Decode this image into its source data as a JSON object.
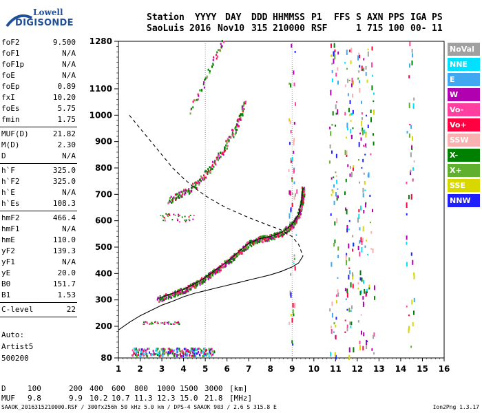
{
  "logo": {
    "top": "Lowell",
    "bottom": "DIGISONDE"
  },
  "header": {
    "line1": [
      "Station",
      "YYYY",
      "DAY",
      "DDD",
      "HHMMSS",
      "P1",
      "FFS",
      "S",
      "AXN",
      "PPS",
      "IGA",
      "PS"
    ],
    "line2": [
      "SaoLuis",
      "2016",
      "Nov10",
      "315",
      "210000",
      "RSF",
      "1",
      "715",
      "100",
      "00-",
      "11"
    ]
  },
  "params": [
    {
      "label": "foF2",
      "value": "9.500"
    },
    {
      "label": "foF1",
      "value": "N/A"
    },
    {
      "label": "foF1p",
      "value": "N/A"
    },
    {
      "label": "foE",
      "value": "N/A"
    },
    {
      "label": "foEp",
      "value": "0.89"
    },
    {
      "label": "fxI",
      "value": "10.20"
    },
    {
      "label": "foEs",
      "value": "5.75"
    },
    {
      "label": "fmin",
      "value": "1.75",
      "sep": true
    },
    {
      "label": "MUF(D)",
      "value": "21.82"
    },
    {
      "label": "M(D)",
      "value": "2.30"
    },
    {
      "label": "D",
      "value": "N/A",
      "sep": true
    },
    {
      "label": "h`F",
      "value": "325.0"
    },
    {
      "label": "h`F2",
      "value": "325.0"
    },
    {
      "label": "h`E",
      "value": "N/A"
    },
    {
      "label": "h`Es",
      "value": "108.3",
      "sep": true
    },
    {
      "label": "hmF2",
      "value": "466.4"
    },
    {
      "label": "hmF1",
      "value": "N/A"
    },
    {
      "label": "hmE",
      "value": "110.0"
    },
    {
      "label": "yF2",
      "value": "139.3"
    },
    {
      "label": "yF1",
      "value": "N/A"
    },
    {
      "label": "yE",
      "value": "20.0"
    },
    {
      "label": "B0",
      "value": "151.7"
    },
    {
      "label": "B1",
      "value": "1.53",
      "sep": true
    },
    {
      "label": "C-level",
      "value": "22",
      "sep": true
    }
  ],
  "auto": {
    "line1": "Auto:",
    "line2": "Artist5",
    "line3": "500200"
  },
  "legend": [
    {
      "label": "NoVal",
      "color": "#a0a0a0"
    },
    {
      "label": "NNE",
      "color": "#00e0ff"
    },
    {
      "label": "E",
      "color": "#3fa8f0"
    },
    {
      "label": "W",
      "color": "#b000b0"
    },
    {
      "label": "Vo-",
      "color": "#ff3fa0"
    },
    {
      "label": "Vo+",
      "color": "#ff0040"
    },
    {
      "label": "SSW",
      "color": "#f8b0b0"
    },
    {
      "label": "X-",
      "color": "#008000"
    },
    {
      "label": "X+",
      "color": "#60b030"
    },
    {
      "label": "SSE",
      "color": "#d8d800"
    },
    {
      "label": "NNW",
      "color": "#2020ff"
    }
  ],
  "bottom": {
    "row1_label": "D",
    "row1_values": [
      "100",
      "200",
      "400",
      "600",
      "800",
      "1000",
      "1500",
      "3000",
      "[km]"
    ],
    "row2_label": "MUF",
    "row2_values": [
      "9.8",
      "9.9",
      "10.2",
      "10.7",
      "11.3",
      "12.3",
      "15.0",
      "21.8",
      "[MHz]"
    ]
  },
  "footer": {
    "left": "SAAOK_2016315210000.RSF / 300fx256h 50 kHz 5.0 km / DPS-4 SAAOK 903 / 2.6 S 315.8 E",
    "right": "Ion2Png 1.3.17"
  },
  "chart_data": {
    "type": "scatter",
    "xlim": [
      1,
      16
    ],
    "ylim": [
      80,
      1280
    ],
    "x_ticks": [
      "1",
      "2",
      "3",
      "4",
      "5",
      "6",
      "7",
      "8",
      "9",
      "10",
      "11",
      "12",
      "13",
      "14",
      "15",
      "16"
    ],
    "y_ticks": [
      "80",
      "200",
      "300",
      "400",
      "500",
      "600",
      "700",
      "800",
      "900",
      "1000",
      "1100",
      "1280"
    ],
    "grid": false,
    "curves": {
      "profile": [
        [
          1.0,
          186
        ],
        [
          1.5,
          215
        ],
        [
          2.0,
          240
        ],
        [
          2.5,
          260
        ],
        [
          3.0,
          280
        ],
        [
          3.5,
          295
        ],
        [
          4.0,
          312
        ],
        [
          4.5,
          325
        ],
        [
          5.0,
          335
        ],
        [
          5.5,
          345
        ],
        [
          6.0,
          355
        ],
        [
          6.5,
          365
        ],
        [
          7.0,
          375
        ],
        [
          7.5,
          385
        ],
        [
          8.0,
          395
        ],
        [
          8.5,
          408
        ],
        [
          9.0,
          425
        ],
        [
          9.3,
          440
        ],
        [
          9.5,
          466
        ]
      ],
      "profile_topside": [
        [
          1.5,
          1000
        ],
        [
          2.0,
          950
        ],
        [
          2.5,
          900
        ],
        [
          3.0,
          850
        ],
        [
          3.5,
          800
        ],
        [
          4.0,
          760
        ],
        [
          4.5,
          725
        ],
        [
          5.0,
          695
        ],
        [
          5.5,
          670
        ],
        [
          6.0,
          648
        ],
        [
          6.5,
          630
        ],
        [
          7.0,
          612
        ],
        [
          7.5,
          596
        ],
        [
          8.0,
          580
        ],
        [
          8.5,
          565
        ],
        [
          9.0,
          540
        ],
        [
          9.3,
          510
        ],
        [
          9.5,
          466
        ]
      ],
      "trace_o": [
        [
          2.8,
          305
        ],
        [
          3.5,
          325
        ],
        [
          4.0,
          340
        ],
        [
          4.5,
          360
        ],
        [
          5.0,
          385
        ],
        [
          5.5,
          415
        ],
        [
          6.0,
          445
        ],
        [
          6.5,
          480
        ],
        [
          7.0,
          515
        ],
        [
          7.5,
          532
        ],
        [
          8.0,
          540
        ],
        [
          8.5,
          555
        ],
        [
          9.0,
          585
        ],
        [
          9.3,
          625
        ],
        [
          9.45,
          680
        ],
        [
          9.5,
          725
        ]
      ],
      "trace_2hop": [
        [
          3.3,
          680
        ],
        [
          3.8,
          700
        ],
        [
          4.3,
          720
        ],
        [
          4.8,
          760
        ],
        [
          5.3,
          810
        ],
        [
          5.8,
          870
        ],
        [
          6.3,
          940
        ],
        [
          6.6,
          1000
        ],
        [
          6.8,
          1050
        ]
      ],
      "trace_3hop": [
        [
          4.3,
          1020
        ],
        [
          4.8,
          1100
        ],
        [
          5.2,
          1180
        ],
        [
          5.6,
          1250
        ],
        [
          5.8,
          1280
        ]
      ]
    }
  }
}
